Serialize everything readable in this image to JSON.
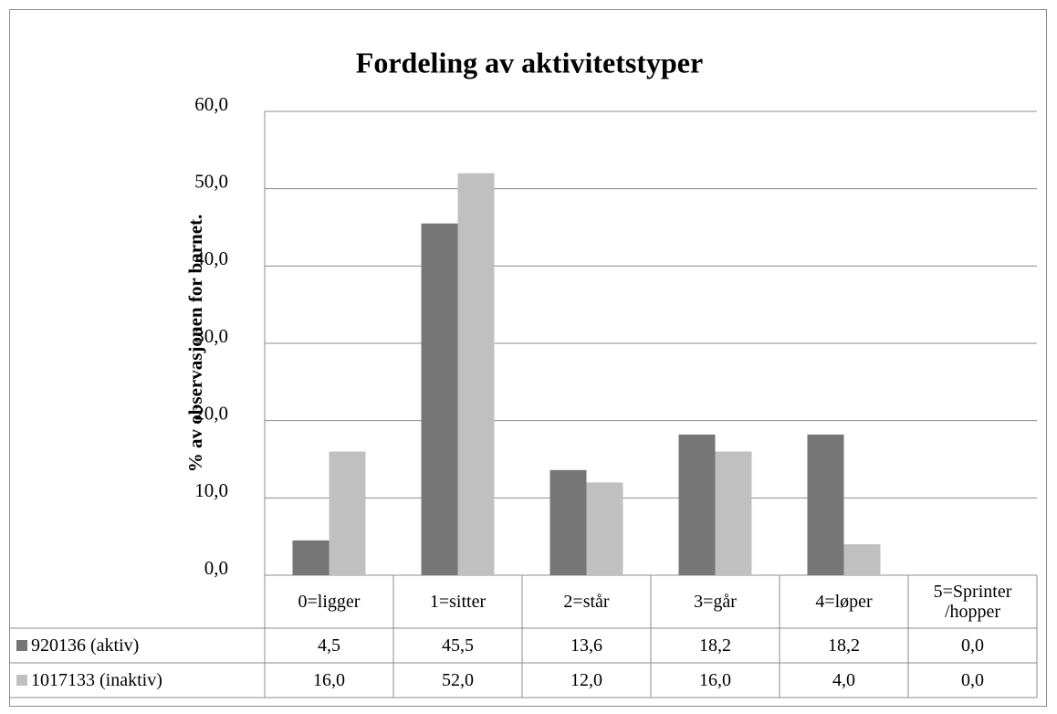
{
  "chart_data": {
    "type": "bar",
    "title": "Fordeling  av aktivitetstyper",
    "y_axis_title": "% av observasjonen for barnet.",
    "categories": [
      "0=ligger",
      "1=sitter",
      "2=står",
      "3=går",
      "4=løper",
      "5=Sprinter /hopper"
    ],
    "series": [
      {
        "name": "920136 (aktiv)",
        "color": "#767676",
        "values": [
          4.5,
          45.5,
          13.6,
          18.2,
          18.2,
          0.0
        ],
        "value_labels": [
          "4,5",
          "45,5",
          "13,6",
          "18,2",
          "18,2",
          "0,0"
        ]
      },
      {
        "name": "1017133 (inaktiv)",
        "color": "#c0c0c0",
        "values": [
          16.0,
          52.0,
          12.0,
          16.0,
          4.0,
          0.0
        ],
        "value_labels": [
          "16,0",
          "52,0",
          "12,0",
          "16,0",
          "4,0",
          "0,0"
        ]
      }
    ],
    "ylim": [
      0,
      60
    ],
    "yticks": [
      {
        "value": 0,
        "label": "0,0"
      },
      {
        "value": 10,
        "label": "10,0"
      },
      {
        "value": 20,
        "label": "20,0"
      },
      {
        "value": 30,
        "label": "30,0"
      },
      {
        "value": 40,
        "label": "40,0"
      },
      {
        "value": 50,
        "label": "50,0"
      },
      {
        "value": 60,
        "label": "60,0"
      }
    ],
    "grid": true,
    "data_table": true
  }
}
